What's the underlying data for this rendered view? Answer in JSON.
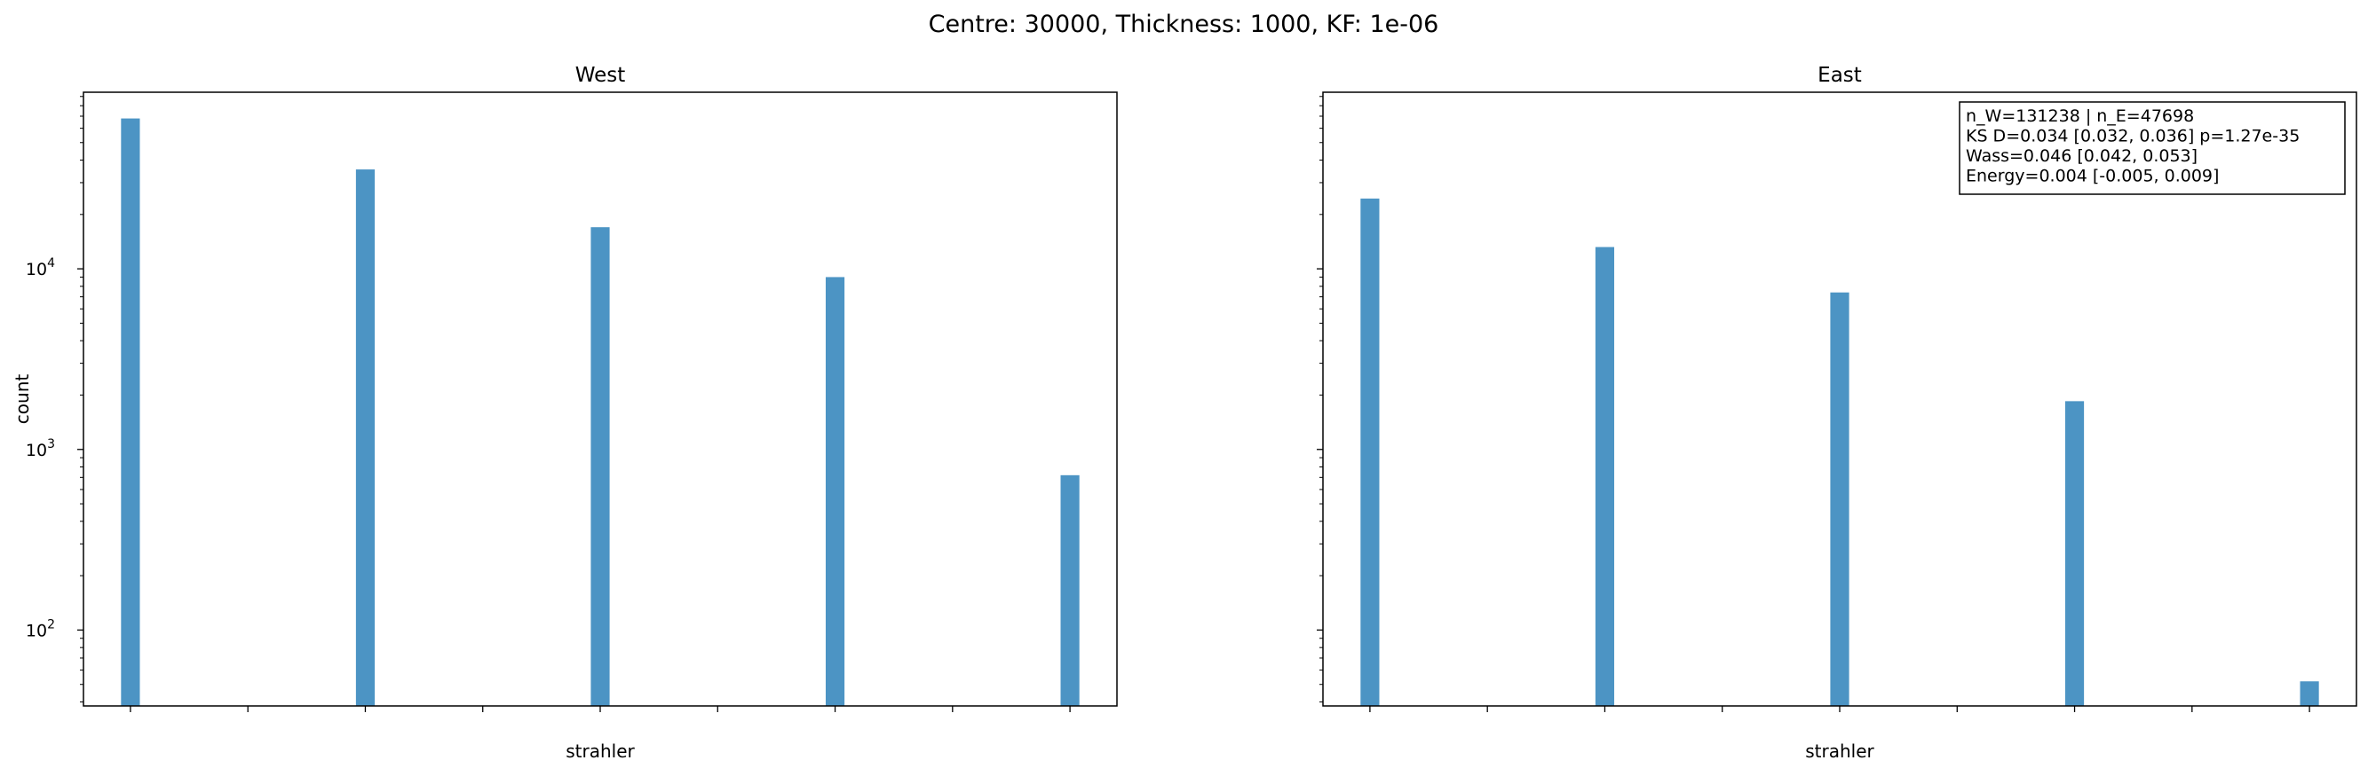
{
  "figure": {
    "suptitle": "Centre: 30000, Thickness: 1000, KF: 1e-06"
  },
  "chart_data": [
    {
      "type": "bar",
      "title": "West",
      "xlabel": "strahler",
      "ylabel": "count",
      "yscale": "log",
      "xlim": [
        0.8,
        5.2
      ],
      "ylim": [
        38,
        95000
      ],
      "xticks": [
        "1.0",
        "1.5",
        "2.0",
        "2.5",
        "3.0",
        "3.5",
        "4.0",
        "4.5",
        "5.0"
      ],
      "yticks": [
        {
          "base": "10",
          "exp": "2",
          "value": 100
        },
        {
          "base": "10",
          "exp": "3",
          "value": 1000
        },
        {
          "base": "10",
          "exp": "4",
          "value": 10000
        }
      ],
      "bar_width": 0.08,
      "bar_color": "#4c94c4",
      "x": [
        1,
        2,
        3,
        4,
        5
      ],
      "values": [
        68000,
        35500,
        17000,
        9000,
        720
      ],
      "grid": false
    },
    {
      "type": "bar",
      "title": "East",
      "xlabel": "strahler",
      "ylabel": "",
      "yscale": "log",
      "shared_y": true,
      "xlim": [
        0.8,
        5.2
      ],
      "ylim": [
        38,
        95000
      ],
      "xticks": [
        "1.0",
        "1.5",
        "2.0",
        "2.5",
        "3.0",
        "3.5",
        "4.0",
        "4.5",
        "5.0"
      ],
      "yticks": [],
      "bar_width": 0.08,
      "bar_color": "#4c94c4",
      "x": [
        1,
        2,
        3,
        4,
        5
      ],
      "values": [
        24500,
        13200,
        7400,
        1850,
        52
      ],
      "grid": false,
      "annotation": {
        "placement": "top-right",
        "lines": [
          "n_W=131238 | n_E=47698",
          "KS D=0.034 [0.032, 0.036]  p=1.27e-35",
          "Wass=0.046 [0.042, 0.053]",
          "Energy=0.004 [-0.005, 0.009]"
        ]
      }
    }
  ]
}
